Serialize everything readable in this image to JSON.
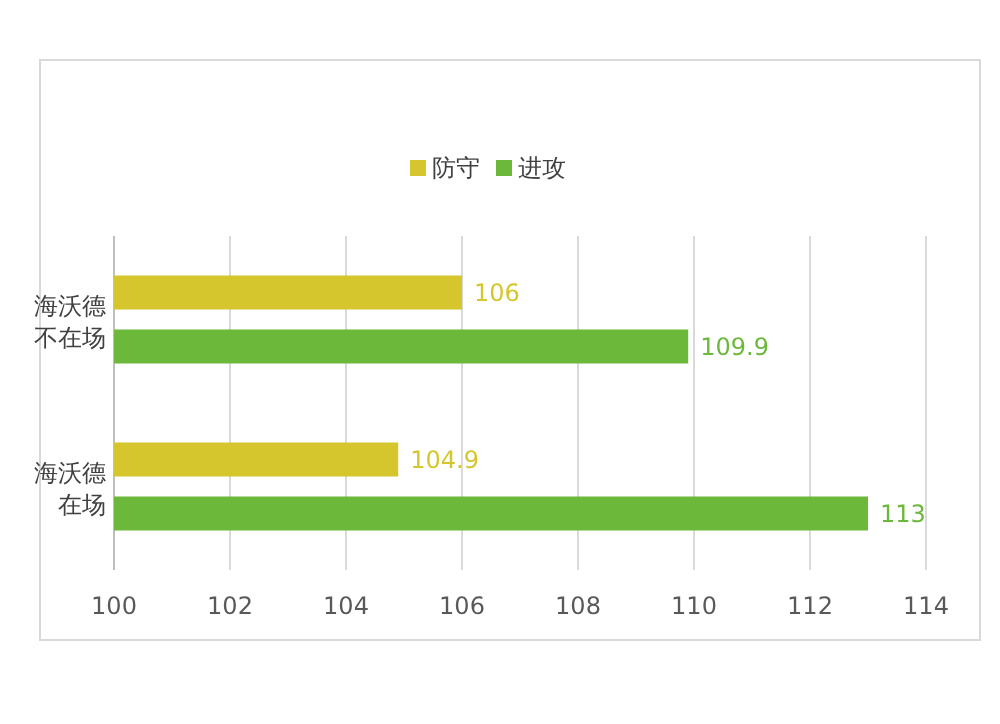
{
  "chart_data": {
    "type": "bar",
    "orientation": "horizontal",
    "categories": [
      "海沃德不在场",
      "海沃德在场"
    ],
    "series": [
      {
        "name": "防守",
        "color": "#d4c62c",
        "values": [
          106,
          104.9
        ]
      },
      {
        "name": "进攻",
        "color": "#6cb83a",
        "values": [
          109.9,
          113
        ]
      }
    ],
    "xlim": [
      100,
      114
    ],
    "xticks": [
      100,
      102,
      104,
      106,
      108,
      110,
      112,
      114
    ],
    "grid": "x",
    "legend": "top",
    "data_labels": true
  }
}
